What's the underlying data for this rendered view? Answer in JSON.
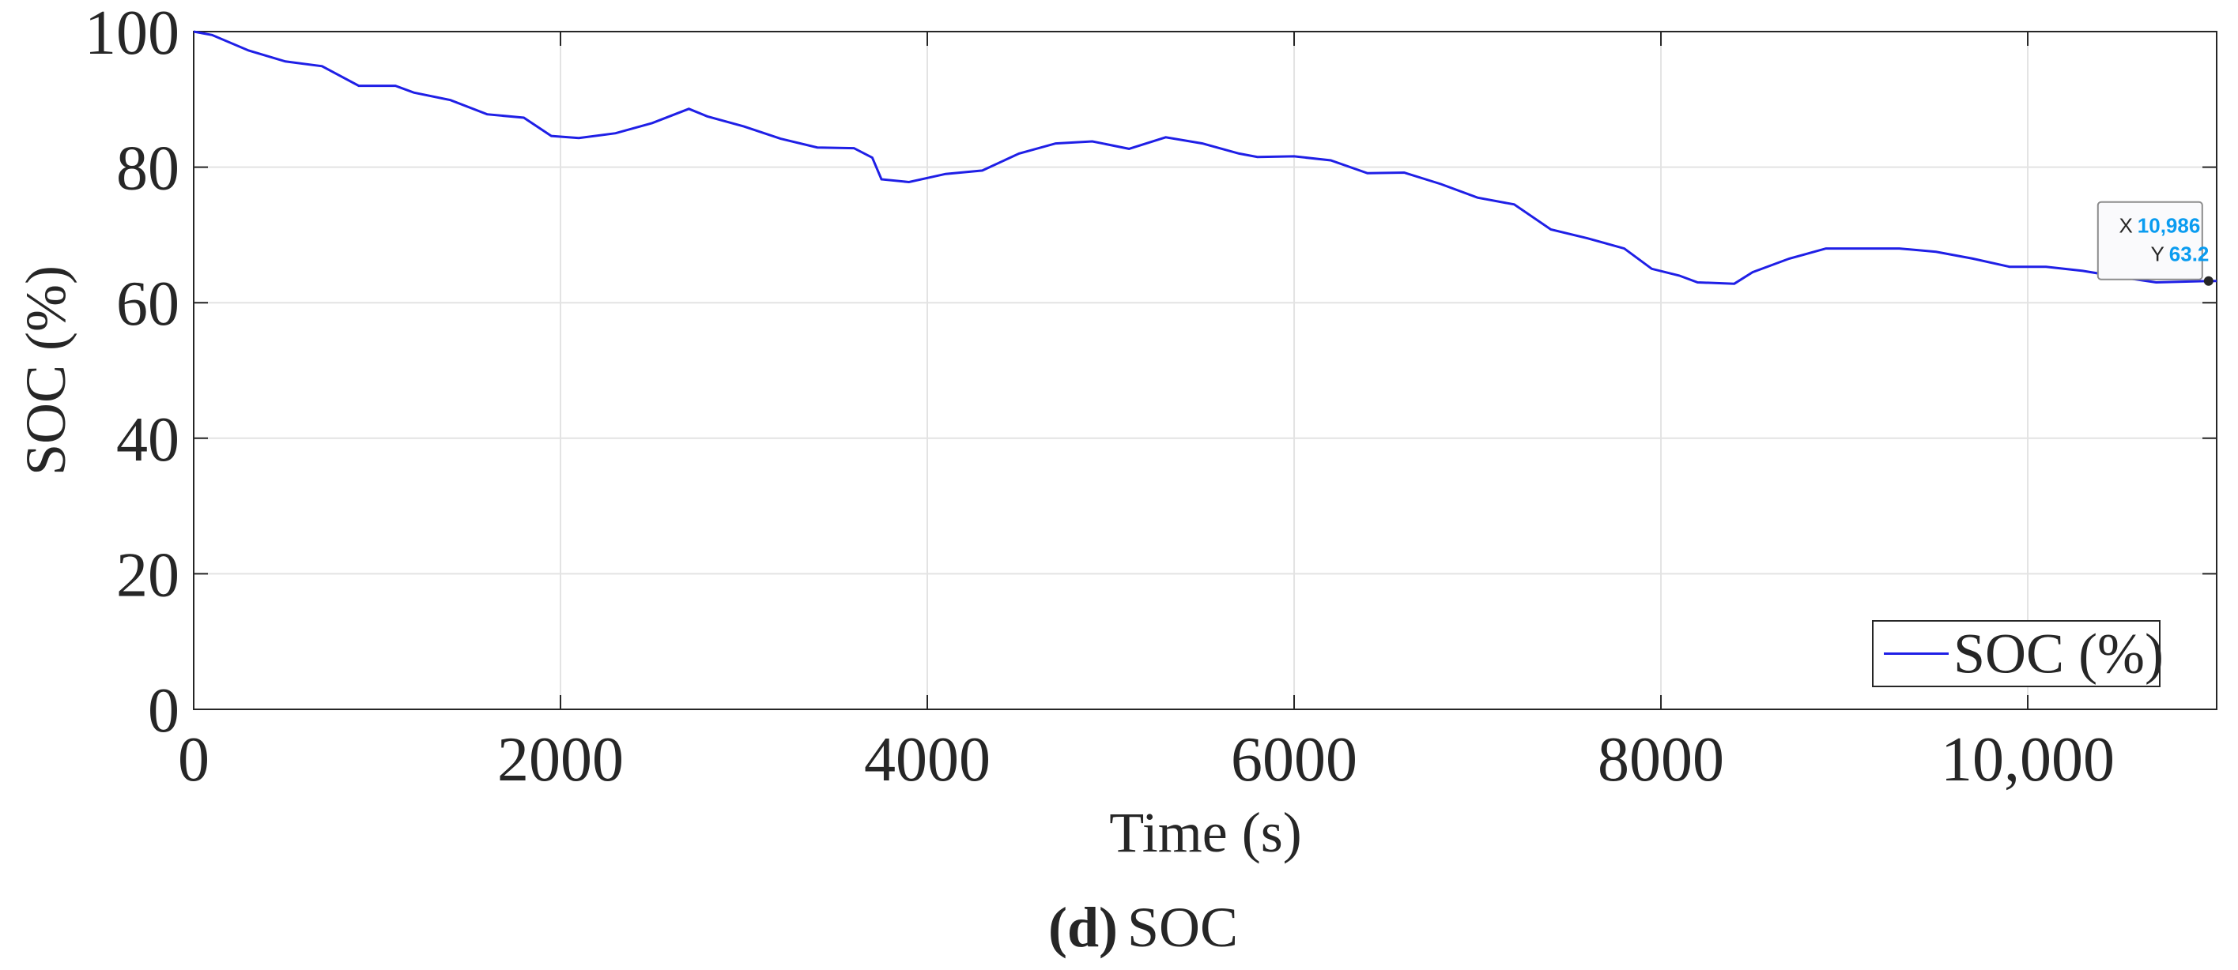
{
  "chart_data": {
    "type": "line",
    "xlabel": "Time (s)",
    "ylabel": "SOC (%)",
    "caption_label": "(d)",
    "caption": "SOC",
    "x": [
      0,
      100,
      300,
      500,
      700,
      900,
      1100,
      1200,
      1400,
      1600,
      1800,
      1950,
      2100,
      2300,
      2500,
      2700,
      2800,
      3000,
      3200,
      3400,
      3600,
      3700,
      3750,
      3900,
      4100,
      4300,
      4500,
      4700,
      4900,
      5100,
      5300,
      5500,
      5700,
      5800,
      6000,
      6200,
      6400,
      6600,
      6800,
      7000,
      7200,
      7400,
      7600,
      7800,
      7950,
      8100,
      8200,
      8400,
      8500,
      8700,
      8900,
      9100,
      9300,
      9500,
      9700,
      9900,
      10100,
      10300,
      10500,
      10700,
      10986,
      11030
    ],
    "series": [
      {
        "name": "SOC (%)",
        "color": "#1f1fe6",
        "values": [
          100,
          99.5,
          97.2,
          95.6,
          94.9,
          92,
          92,
          91,
          89.9,
          87.8,
          87.3,
          84.6,
          84.3,
          85,
          86.5,
          88.6,
          87.5,
          86,
          84.2,
          82.9,
          82.8,
          81.4,
          78.2,
          77.8,
          79,
          79.5,
          82,
          83.5,
          83.8,
          82.7,
          84.4,
          83.5,
          82,
          81.5,
          81.6,
          81,
          79.1,
          79.2,
          77.5,
          75.5,
          74.5,
          70.8,
          69.5,
          68,
          65,
          64,
          63,
          62.8,
          64.5,
          66.5,
          68,
          68,
          68,
          67.5,
          66.5,
          65.3,
          65.3,
          64.7,
          63.8,
          63,
          63.2,
          63.2
        ]
      }
    ],
    "xlim": [
      0,
      11030
    ],
    "ylim": [
      0,
      100
    ],
    "xticks": [
      0,
      2000,
      4000,
      6000,
      8000,
      {
        "value": 10000,
        "label": "10,000"
      }
    ],
    "yticks": [
      0,
      20,
      40,
      60,
      80,
      100
    ],
    "grid": true,
    "legend": "lower right",
    "datatip": {
      "index": 60,
      "x_label": "X",
      "x_text": "10,986",
      "y_label": "Y",
      "y_text": "63.2"
    }
  }
}
